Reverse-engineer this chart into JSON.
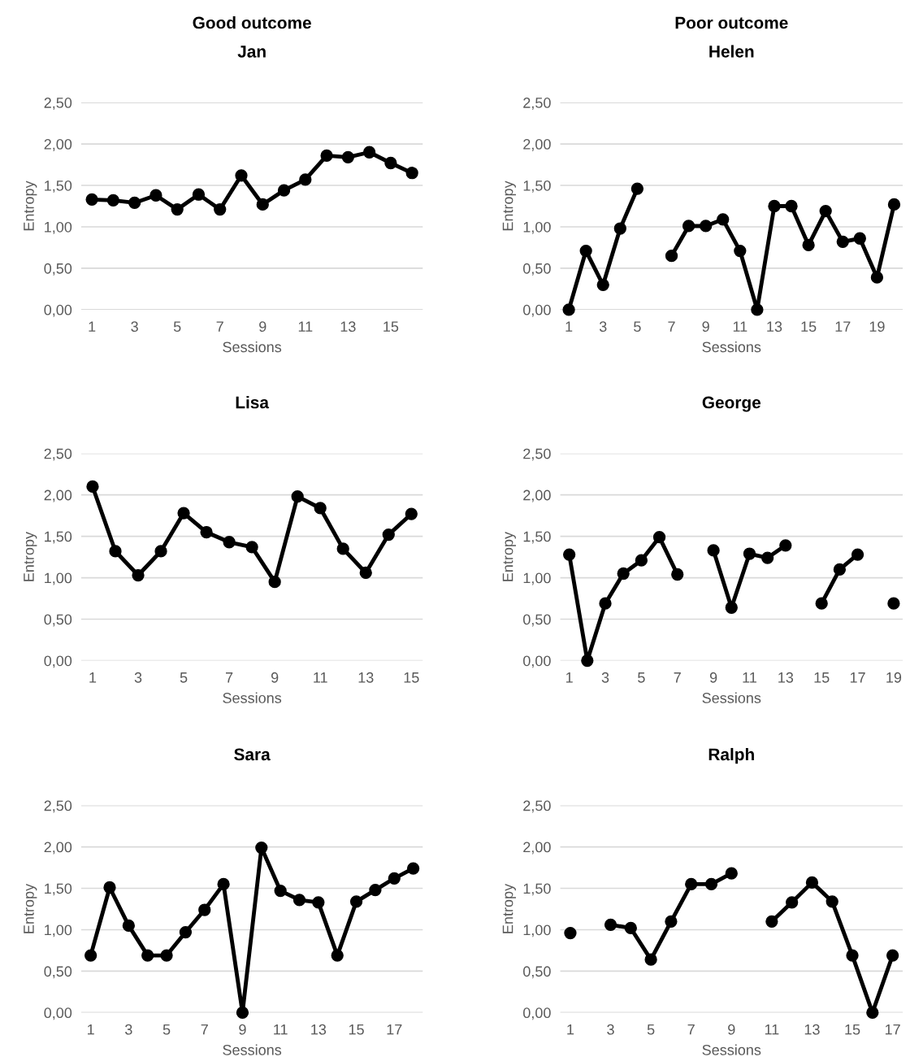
{
  "chart_data": [
    {
      "type": "line",
      "title": "Jan",
      "annotations": [
        "Good outcome"
      ],
      "xlabel": "Sessions",
      "ylabel": "Entropy",
      "categories": [
        "1",
        null,
        "3",
        null,
        "5",
        null,
        "7",
        null,
        "9",
        null,
        "11",
        null,
        "13",
        null,
        "15",
        null
      ],
      "series": [
        {
          "color": "#000000",
          "values": [
            1.33,
            1.32,
            1.29,
            1.38,
            1.21,
            1.39,
            1.21,
            1.62,
            1.27,
            1.44,
            1.57,
            1.86,
            1.84,
            1.9,
            1.77,
            1.65
          ]
        }
      ],
      "ylim": [
        0,
        2.5
      ],
      "yticks": [
        {
          "value": 0,
          "label": "0,00"
        },
        {
          "value": 0.5,
          "label": "0,50"
        },
        {
          "value": 1,
          "label": "1,00"
        },
        {
          "value": 1.5,
          "label": "1,50"
        },
        {
          "value": 2,
          "label": "2,00"
        },
        {
          "value": 2.5,
          "label": "2,50"
        }
      ],
      "grid": "y",
      "marker": "circle",
      "line_style": "solid"
    },
    {
      "type": "line",
      "title": "Helen",
      "annotations": [
        "Poor outcome"
      ],
      "xlabel": "Sessions",
      "ylabel": "Entropy",
      "categories": [
        "1",
        null,
        "3",
        null,
        "5",
        null,
        "7",
        null,
        "9",
        null,
        "11",
        null,
        "13",
        null,
        "15",
        null,
        "17",
        null,
        "19",
        null
      ],
      "series": [
        {
          "color": "#000000",
          "values": [
            0,
            0.71,
            0.3,
            0.98,
            1.46,
            null,
            0.65,
            1.01,
            1.01,
            1.09,
            0.71,
            0,
            1.25,
            1.25,
            0.78,
            1.19,
            0.82,
            0.86,
            0.39,
            1.27
          ]
        }
      ],
      "ylim": [
        0,
        2.5
      ],
      "yticks": [
        {
          "value": 0,
          "label": "0,00"
        },
        {
          "value": 0.5,
          "label": "0,50"
        },
        {
          "value": 1,
          "label": "1,00"
        },
        {
          "value": 1.5,
          "label": "1,50"
        },
        {
          "value": 2,
          "label": "2,00"
        },
        {
          "value": 2.5,
          "label": "2,50"
        }
      ],
      "grid": "y",
      "marker": "circle",
      "line_style": "solid"
    },
    {
      "type": "line",
      "title": "Lisa",
      "xlabel": "Sessions",
      "ylabel": "Entropy",
      "categories": [
        "1",
        null,
        "3",
        null,
        "5",
        null,
        "7",
        null,
        "9",
        null,
        "11",
        null,
        "13",
        null,
        "15"
      ],
      "series": [
        {
          "color": "#000000",
          "values": [
            2.1,
            1.32,
            1.03,
            1.32,
            1.78,
            1.55,
            1.43,
            1.37,
            0.95,
            1.98,
            1.84,
            1.35,
            1.06,
            1.52,
            1.77
          ]
        }
      ],
      "ylim": [
        0,
        2.5
      ],
      "yticks": [
        {
          "value": 0,
          "label": "0,00"
        },
        {
          "value": 0.5,
          "label": "0,50"
        },
        {
          "value": 1,
          "label": "1,00"
        },
        {
          "value": 1.5,
          "label": "1,50"
        },
        {
          "value": 2,
          "label": "2,00"
        },
        {
          "value": 2.5,
          "label": "2,50"
        }
      ],
      "grid": "y",
      "marker": "circle",
      "line_style": "solid"
    },
    {
      "type": "line",
      "title": "George",
      "xlabel": "Sessions",
      "ylabel": "Entropy",
      "categories": [
        "1",
        null,
        "3",
        null,
        "5",
        null,
        "7",
        null,
        "9",
        null,
        "11",
        null,
        "13",
        null,
        "15",
        null,
        "17",
        null,
        "19"
      ],
      "series": [
        {
          "color": "#000000",
          "values": [
            1.28,
            0,
            0.69,
            1.05,
            1.21,
            1.49,
            1.04,
            null,
            1.33,
            0.64,
            1.29,
            1.24,
            1.39,
            null,
            0.69,
            1.1,
            1.28,
            null,
            0.69
          ]
        }
      ],
      "ylim": [
        0,
        2.5
      ],
      "yticks": [
        {
          "value": 0,
          "label": "0,00"
        },
        {
          "value": 0.5,
          "label": "0,50"
        },
        {
          "value": 1,
          "label": "1,00"
        },
        {
          "value": 1.5,
          "label": "1,50"
        },
        {
          "value": 2,
          "label": "2,00"
        },
        {
          "value": 2.5,
          "label": "2,50"
        }
      ],
      "grid": "y",
      "marker": "circle",
      "line_style": "solid"
    },
    {
      "type": "line",
      "title": "Sara",
      "xlabel": "Sessions",
      "ylabel": "Entropy",
      "categories": [
        "1",
        null,
        "3",
        null,
        "5",
        null,
        "7",
        null,
        "9",
        null,
        "11",
        null,
        "13",
        null,
        "15",
        null,
        "17",
        null
      ],
      "series": [
        {
          "color": "#000000",
          "values": [
            0.69,
            1.51,
            1.05,
            0.69,
            0.69,
            0.97,
            1.24,
            1.55,
            0,
            1.99,
            1.47,
            1.36,
            1.33,
            0.69,
            1.34,
            1.48,
            1.62,
            1.74
          ]
        }
      ],
      "ylim": [
        0,
        2.5
      ],
      "yticks": [
        {
          "value": 0,
          "label": "0,00"
        },
        {
          "value": 0.5,
          "label": "0,50"
        },
        {
          "value": 1,
          "label": "1,00"
        },
        {
          "value": 1.5,
          "label": "1,50"
        },
        {
          "value": 2,
          "label": "2,00"
        },
        {
          "value": 2.5,
          "label": "2,50"
        }
      ],
      "grid": "y",
      "marker": "circle",
      "line_style": "solid"
    },
    {
      "type": "line",
      "title": "Ralph",
      "xlabel": "Sessions",
      "ylabel": "Entropy",
      "categories": [
        "1",
        null,
        "3",
        null,
        "5",
        null,
        "7",
        null,
        "9",
        null,
        "11",
        null,
        "13",
        null,
        "15",
        null,
        "17"
      ],
      "series": [
        {
          "color": "#000000",
          "values": [
            0.96,
            null,
            1.06,
            1.02,
            0.64,
            1.1,
            1.55,
            1.55,
            1.68,
            null,
            1.1,
            1.33,
            1.57,
            1.34,
            0.69,
            0,
            0.69
          ]
        }
      ],
      "ylim": [
        0,
        2.5
      ],
      "yticks": [
        {
          "value": 0,
          "label": "0,00"
        },
        {
          "value": 0.5,
          "label": "0,50"
        },
        {
          "value": 1,
          "label": "1,00"
        },
        {
          "value": 1.5,
          "label": "1,50"
        },
        {
          "value": 2,
          "label": "2,00"
        },
        {
          "value": 2.5,
          "label": "2,50"
        }
      ],
      "grid": "y",
      "marker": "circle",
      "line_style": "solid"
    }
  ]
}
